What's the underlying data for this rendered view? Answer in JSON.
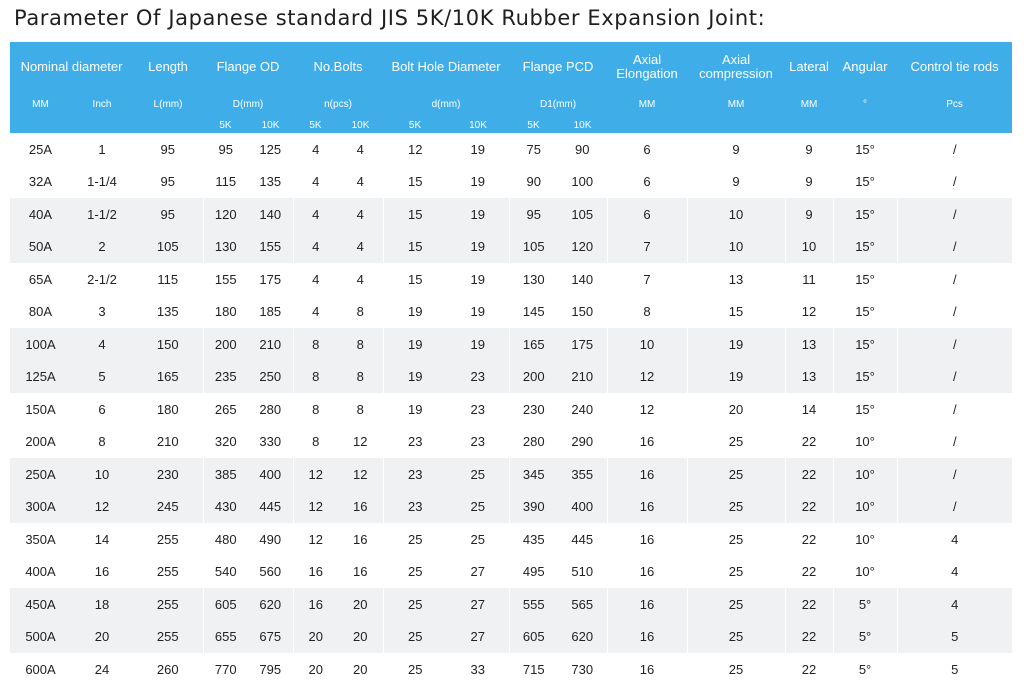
{
  "title": "Parameter Of Japanese standard JIS 5K/10K Rubber Expansion Joint:",
  "header": {
    "nominal_diameter": "Nominal diameter",
    "length": "Length",
    "flange_od": "Flange OD",
    "no_bolts": "No.Bolts",
    "bolt_hole_diameter": "Bolt Hole Diameter",
    "flange_pcd": "Flange PCD",
    "axial_elongation": "Axial Elongation",
    "axial_compression": "Axial compression",
    "lateral": "Lateral",
    "angular": "Angular",
    "control_tie_rods": "Control tie rods",
    "units": {
      "mm": "MM",
      "inch": "Inch",
      "length": "L(mm)",
      "flange_od": "D(mm)",
      "no_bolts": "n(pcs)",
      "bolt_hole": "d(mm)",
      "pcd": "D1(mm)",
      "elongation": "MM",
      "compression": "MM",
      "lateral": "MM",
      "angular": "°",
      "tie_rods": "Pcs"
    },
    "k5": "5K",
    "k10": "10K"
  },
  "rows": [
    [
      "25A",
      "1",
      "95",
      "95",
      "125",
      "4",
      "4",
      "12",
      "19",
      "75",
      "90",
      "6",
      "9",
      "9",
      "15°",
      "/"
    ],
    [
      "32A",
      "1-1/4",
      "95",
      "115",
      "135",
      "4",
      "4",
      "15",
      "19",
      "90",
      "100",
      "6",
      "9",
      "9",
      "15°",
      "/"
    ],
    [
      "40A",
      "1-1/2",
      "95",
      "120",
      "140",
      "4",
      "4",
      "15",
      "19",
      "95",
      "105",
      "6",
      "10",
      "9",
      "15°",
      "/"
    ],
    [
      "50A",
      "2",
      "105",
      "130",
      "155",
      "4",
      "4",
      "15",
      "19",
      "105",
      "120",
      "7",
      "10",
      "10",
      "15°",
      "/"
    ],
    [
      "65A",
      "2-1/2",
      "115",
      "155",
      "175",
      "4",
      "4",
      "15",
      "19",
      "130",
      "140",
      "7",
      "13",
      "11",
      "15°",
      "/"
    ],
    [
      "80A",
      "3",
      "135",
      "180",
      "185",
      "4",
      "8",
      "19",
      "19",
      "145",
      "150",
      "8",
      "15",
      "12",
      "15°",
      "/"
    ],
    [
      "100A",
      "4",
      "150",
      "200",
      "210",
      "8",
      "8",
      "19",
      "19",
      "165",
      "175",
      "10",
      "19",
      "13",
      "15°",
      "/"
    ],
    [
      "125A",
      "5",
      "165",
      "235",
      "250",
      "8",
      "8",
      "19",
      "23",
      "200",
      "210",
      "12",
      "19",
      "13",
      "15°",
      "/"
    ],
    [
      "150A",
      "6",
      "180",
      "265",
      "280",
      "8",
      "8",
      "19",
      "23",
      "230",
      "240",
      "12",
      "20",
      "14",
      "15°",
      "/"
    ],
    [
      "200A",
      "8",
      "210",
      "320",
      "330",
      "8",
      "12",
      "23",
      "23",
      "280",
      "290",
      "16",
      "25",
      "22",
      "10°",
      "/"
    ],
    [
      "250A",
      "10",
      "230",
      "385",
      "400",
      "12",
      "12",
      "23",
      "25",
      "345",
      "355",
      "16",
      "25",
      "22",
      "10°",
      "/"
    ],
    [
      "300A",
      "12",
      "245",
      "430",
      "445",
      "12",
      "16",
      "23",
      "25",
      "390",
      "400",
      "16",
      "25",
      "22",
      "10°",
      "/"
    ],
    [
      "350A",
      "14",
      "255",
      "480",
      "490",
      "12",
      "16",
      "25",
      "25",
      "435",
      "445",
      "16",
      "25",
      "22",
      "10°",
      "4"
    ],
    [
      "400A",
      "16",
      "255",
      "540",
      "560",
      "16",
      "16",
      "25",
      "27",
      "495",
      "510",
      "16",
      "25",
      "22",
      "10°",
      "4"
    ],
    [
      "450A",
      "18",
      "255",
      "605",
      "620",
      "16",
      "20",
      "25",
      "27",
      "555",
      "565",
      "16",
      "25",
      "22",
      "5°",
      "4"
    ],
    [
      "500A",
      "20",
      "255",
      "655",
      "675",
      "20",
      "20",
      "25",
      "27",
      "605",
      "620",
      "16",
      "25",
      "22",
      "5°",
      "5"
    ],
    [
      "600A",
      "24",
      "260",
      "770",
      "795",
      "20",
      "20",
      "25",
      "33",
      "715",
      "730",
      "16",
      "25",
      "22",
      "5°",
      "5"
    ]
  ]
}
